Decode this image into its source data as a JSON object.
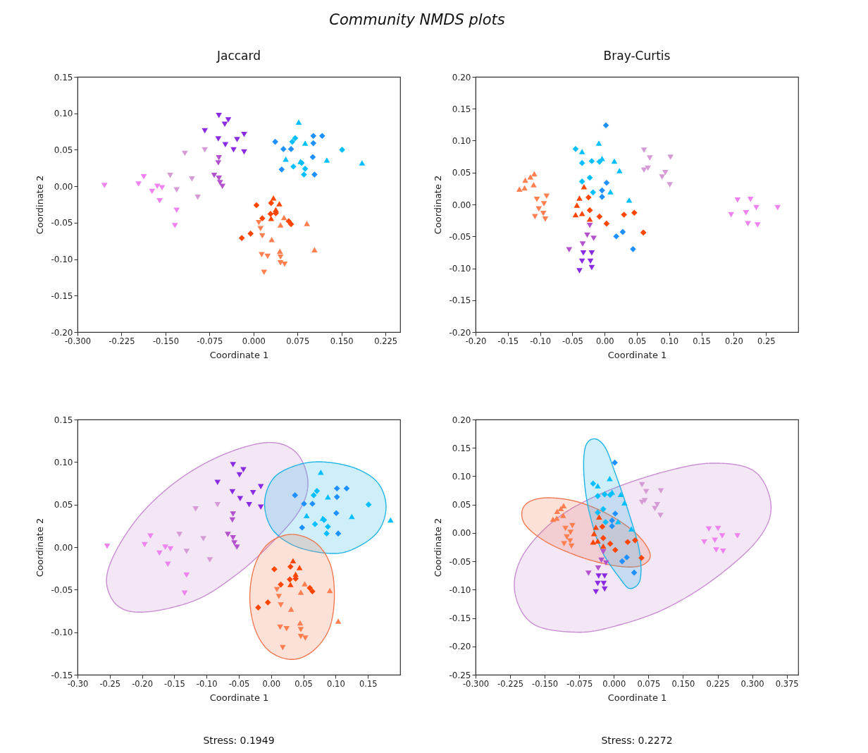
{
  "chart_data": [
    {
      "type": "scatter",
      "title": "Community NMDS plots",
      "subtitle": "Jaccard",
      "xlabel": "Coordinate 1",
      "ylabel": "Coordinate 2",
      "xlim": [
        -0.3,
        0.25
      ],
      "ylim": [
        -0.2,
        0.15
      ],
      "xticks": [
        {
          "value": -0.3,
          "label": "-0.300"
        },
        -0.225,
        {
          "value": -0.15,
          "label": "-0.150"
        },
        -0.075,
        {
          "value": 0,
          "label": "0.000"
        },
        0.075,
        {
          "value": 0.15,
          "label": "0.150"
        },
        0.225
      ],
      "yticks": [
        {
          "value": -0.2,
          "label": "-0.20"
        },
        -0.15,
        {
          "value": -0.1,
          "label": "-0.10"
        },
        -0.05,
        {
          "value": 0,
          "label": "0.00"
        },
        0.05,
        {
          "value": 0.1,
          "label": "0.10"
        },
        0.15
      ],
      "series": [
        {
          "color": "#ee82ee",
          "marker": "triangle-down",
          "x": [
            -0.254,
            -0.196,
            -0.187,
            -0.173,
            -0.164,
            -0.156,
            -0.16,
            -0.131,
            -0.134
          ],
          "values": [
            0.001,
            0.003,
            0.013,
            -0.007,
            0,
            -0.002,
            -0.02,
            -0.033,
            -0.054
          ]
        },
        {
          "color": "#d69bd6",
          "marker": "triangle-down",
          "x": [
            -0.117,
            -0.083,
            -0.142,
            -0.131,
            -0.105,
            -0.095
          ],
          "values": [
            0.045,
            0.05,
            0.015,
            -0.005,
            0.01,
            -0.015
          ]
        },
        {
          "color": "#b452cd",
          "marker": "triangle-down",
          "x": [
            -0.059,
            -0.06,
            -0.067,
            -0.059,
            -0.057,
            -0.053
          ],
          "values": [
            0.039,
            0.032,
            0.015,
            0.011,
            0.005,
            0.0
          ]
        },
        {
          "color": "#8a2be2",
          "marker": "triangle-down",
          "x": [
            -0.059,
            -0.043,
            -0.049,
            -0.083,
            -0.06,
            -0.048,
            -0.028,
            -0.016,
            -0.034,
            -0.016
          ],
          "values": [
            0.097,
            0.091,
            0.085,
            0.076,
            0.065,
            0.057,
            0.064,
            0.071,
            0.05,
            0.047
          ]
        },
        {
          "color": "#1e90ff",
          "marker": "diamond",
          "x": [
            0.037,
            0.051,
            0.064,
            0.048,
            0.102,
            0.117,
            0.102,
            0.101,
            0.104
          ],
          "values": [
            0.061,
            0.051,
            0.051,
            0.023,
            0.069,
            0.069,
            0.059,
            0.04,
            0.016
          ]
        },
        {
          "color": "#00bfff",
          "marker": "diamond",
          "x": [
            0.071,
            0.066,
            0.068,
            0.082,
            0.086,
            0.151,
            0.088
          ],
          "values": [
            0.066,
            0.061,
            0.027,
            0.032,
            0.016,
            0.05,
            0.024
          ]
        },
        {
          "color": "#00bfff",
          "marker": "triangle",
          "x": [
            0.077,
            0.088,
            0.055,
            0.125,
            0.185,
            0.08
          ],
          "values": [
            0.088,
            0.059,
            0.037,
            0.036,
            0.032,
            0.034
          ]
        },
        {
          "color": "#ff4500",
          "marker": "diamond",
          "x": [
            0.005,
            -0.02,
            -0.005,
            0.015,
            0.029,
            0.038,
            0.06,
            0.064,
            0.03
          ],
          "values": [
            -0.026,
            -0.071,
            -0.065,
            -0.044,
            -0.038,
            -0.037,
            -0.048,
            -0.052,
            -0.023
          ]
        },
        {
          "color": "#ff4500",
          "marker": "triangle",
          "x": [
            0.034,
            0.044,
            0.03,
            0.038
          ],
          "values": [
            -0.016,
            -0.024,
            -0.044,
            -0.032
          ]
        },
        {
          "color": "#ff7f50",
          "marker": "triangle",
          "x": [
            0.091,
            0.104,
            0.031,
            0.046,
            0.045,
            0.052
          ],
          "values": [
            -0.051,
            -0.087,
            -0.073,
            -0.053,
            -0.089,
            -0.043
          ]
        },
        {
          "color": "#ff7f50",
          "marker": "triangle-down",
          "x": [
            0.009,
            0.012,
            0.015,
            0.014,
            0.024,
            0.046,
            0.046,
            0.053,
            0.018
          ],
          "values": [
            -0.05,
            -0.058,
            -0.068,
            -0.094,
            -0.096,
            -0.097,
            -0.105,
            -0.107,
            -0.118
          ]
        }
      ]
    },
    {
      "type": "scatter",
      "title": "Bray-Curtis",
      "xlabel": "Coordinate 1",
      "ylabel": "Coordinate 2",
      "xlim": [
        -0.2,
        0.3
      ],
      "ylim": [
        -0.2,
        0.2
      ],
      "xticks": [
        {
          "value": -0.2,
          "label": "-0.20"
        },
        -0.15,
        {
          "value": -0.1,
          "label": "-0.10"
        },
        -0.05,
        {
          "value": 0,
          "label": "0.00"
        },
        0.05,
        {
          "value": 0.1,
          "label": "0.10"
        },
        0.15,
        {
          "value": 0.2,
          "label": "0.20"
        },
        0.25
      ],
      "yticks": [
        {
          "value": -0.2,
          "label": "-0.20"
        },
        -0.15,
        {
          "value": -0.1,
          "label": "-0.10"
        },
        -0.05,
        {
          "value": 0,
          "label": "0.00"
        },
        0.05,
        {
          "value": 0.1,
          "label": "0.10"
        },
        0.15,
        {
          "value": 0.2,
          "label": "0.20"
        }
      ],
      "series": [
        {
          "color": "#ee82ee",
          "marker": "triangle-down",
          "x": [
            0.206,
            0.226,
            0.235,
            0.196,
            0.219,
            0.222,
            0.237,
            0.268
          ],
          "values": [
            0.007,
            0.008,
            -0.005,
            -0.016,
            -0.013,
            -0.03,
            -0.032,
            -0.005
          ]
        },
        {
          "color": "#d69bd6",
          "marker": "triangle-down",
          "x": [
            0.061,
            0.07,
            0.061,
            0.067,
            0.102,
            0.094,
            0.089,
            0.101
          ],
          "values": [
            0.085,
            0.073,
            0.054,
            0.057,
            0.074,
            0.05,
            0.043,
            0.031
          ]
        },
        {
          "color": "#b452cd",
          "marker": "triangle-down",
          "x": [
            -0.023,
            -0.027,
            -0.017,
            -0.034,
            -0.055
          ],
          "values": [
            -0.033,
            -0.048,
            -0.053,
            -0.062,
            -0.071
          ]
        },
        {
          "color": "#8a2be2",
          "marker": "triangle-down",
          "x": [
            -0.033,
            -0.02,
            -0.035,
            -0.022,
            -0.039,
            -0.02
          ],
          "values": [
            -0.076,
            -0.076,
            -0.089,
            -0.089,
            -0.104,
            -0.099
          ]
        },
        {
          "color": "#1e90ff",
          "marker": "diamond",
          "x": [
            0.002,
            0.003,
            -0.004,
            -0.004,
            0.018,
            0.028,
            0.044
          ],
          "values": [
            0.124,
            0.034,
            0.022,
            0.012,
            -0.05,
            -0.043,
            -0.07
          ]
        },
        {
          "color": "#00bfff",
          "marker": "diamond",
          "x": [
            -0.045,
            -0.035,
            -0.02,
            -0.008,
            -0.023,
            -0.035,
            -0.018
          ],
          "values": [
            0.087,
            0.065,
            0.068,
            0.067,
            0.042,
            0.036,
            0.019
          ]
        },
        {
          "color": "#00bfff",
          "marker": "triangle",
          "x": [
            -0.009,
            -0.035,
            -0.004,
            0.015,
            0.023,
            0.009,
            0.038
          ],
          "values": [
            0.096,
            0.083,
            0.072,
            0.068,
            0.053,
            0.02,
            0.007
          ]
        },
        {
          "color": "#ff4500",
          "marker": "diamond",
          "x": [
            -0.025,
            -0.023,
            -0.008,
            0.003,
            0.03,
            0.046,
            0.06
          ],
          "values": [
            0.011,
            -0.009,
            -0.019,
            -0.03,
            -0.016,
            -0.013,
            -0.044
          ]
        },
        {
          "color": "#ff4500",
          "marker": "triangle",
          "x": [
            -0.032,
            -0.039,
            -0.043,
            -0.045,
            -0.035,
            -0.023
          ],
          "values": [
            0.028,
            0.01,
            -0.001,
            -0.016,
            -0.014,
            -0.023
          ]
        },
        {
          "color": "#ff7f50",
          "marker": "triangle",
          "x": [
            -0.132,
            -0.124,
            -0.123,
            -0.115,
            -0.109,
            -0.11
          ],
          "values": [
            0.024,
            0.026,
            0.038,
            0.043,
            0.048,
            0.031
          ]
        },
        {
          "color": "#ff7f50",
          "marker": "triangle-down",
          "x": [
            -0.105,
            -0.09,
            -0.094,
            -0.102,
            -0.108,
            -0.092,
            -0.095
          ],
          "values": [
            0.008,
            0.013,
            0.001,
            -0.007,
            -0.019,
            -0.023,
            -0.014
          ]
        }
      ]
    },
    {
      "type": "scatter",
      "xlabel": "Coordinate 1",
      "ylabel": "Coordinate 2",
      "xlim": [
        -0.3,
        0.2
      ],
      "ylim": [
        -0.15,
        0.15
      ],
      "annotations": [
        "Stress: 0.1949"
      ],
      "xticks": [
        {
          "value": -0.3,
          "label": "-0.30"
        },
        -0.25,
        {
          "value": -0.2,
          "label": "-0.20"
        },
        -0.15,
        {
          "value": -0.1,
          "label": "-0.10"
        },
        -0.05,
        {
          "value": 0,
          "label": "0.00"
        },
        0.05,
        {
          "value": 0.1,
          "label": "0.10"
        },
        0.15
      ],
      "yticks": [
        -0.15,
        {
          "value": -0.1,
          "label": "-0.10"
        },
        -0.05,
        {
          "value": 0,
          "label": "0.00"
        },
        0.05,
        {
          "value": 0.1,
          "label": "0.10"
        },
        0.15
      ],
      "series": [
        {
          "type": "area",
          "color": "#c88cd2",
          "x": [
            -0.255,
            -0.24,
            -0.198,
            -0.138,
            -0.07,
            -0.003,
            0.039,
            0.057,
            0.043,
            -0.003,
            -0.055,
            -0.116,
            -0.191,
            -0.236
          ],
          "values": [
            -0.041,
            -0.004,
            0.042,
            0.082,
            0.11,
            0.123,
            0.111,
            0.077,
            0.042,
            0.002,
            -0.033,
            -0.062,
            -0.076,
            -0.07
          ]
        },
        {
          "type": "area",
          "color": "#1eb4e6",
          "x": [
            -0.01,
            0.005,
            0.043,
            0.084,
            0.133,
            0.167,
            0.178,
            0.163,
            0.122,
            0.084,
            0.035,
            0.001
          ],
          "values": [
            0.053,
            0.082,
            0.097,
            0.1,
            0.092,
            0.074,
            0.045,
            0.016,
            -0.004,
            -0.007,
            0.002,
            0.022
          ]
        },
        {
          "type": "area",
          "color": "#f07850",
          "x": [
            -0.033,
            -0.025,
            -0.003,
            0.032,
            0.069,
            0.092,
            0.098,
            0.09,
            0.065,
            0.032,
            -0.003,
            -0.025
          ],
          "values": [
            -0.059,
            -0.021,
            0.005,
            0.015,
            0.005,
            -0.021,
            -0.059,
            -0.096,
            -0.122,
            -0.132,
            -0.122,
            -0.096
          ]
        },
        {
          "color": "#ee82ee",
          "marker": "triangle-down",
          "x": [
            -0.254,
            -0.196,
            -0.187,
            -0.173,
            -0.164,
            -0.156,
            -0.16,
            -0.131,
            -0.134
          ],
          "values": [
            0.001,
            0.003,
            0.013,
            -0.007,
            0,
            -0.002,
            -0.02,
            -0.033,
            -0.054
          ]
        },
        {
          "color": "#d69bd6",
          "marker": "triangle-down",
          "x": [
            -0.117,
            -0.083,
            -0.142,
            -0.131,
            -0.105,
            -0.095
          ],
          "values": [
            0.045,
            0.05,
            0.015,
            -0.005,
            0.01,
            -0.015
          ]
        },
        {
          "color": "#b452cd",
          "marker": "triangle-down",
          "x": [
            -0.059,
            -0.06,
            -0.067,
            -0.059,
            -0.057,
            -0.053
          ],
          "values": [
            0.039,
            0.032,
            0.015,
            0.011,
            0.005,
            0.0
          ]
        },
        {
          "color": "#8a2be2",
          "marker": "triangle-down",
          "x": [
            -0.059,
            -0.043,
            -0.049,
            -0.083,
            -0.06,
            -0.048,
            -0.028,
            -0.016,
            -0.034,
            -0.016
          ],
          "values": [
            0.097,
            0.091,
            0.085,
            0.076,
            0.065,
            0.057,
            0.064,
            0.071,
            0.05,
            0.047
          ]
        },
        {
          "color": "#1e90ff",
          "marker": "diamond",
          "x": [
            0.037,
            0.051,
            0.064,
            0.048,
            0.102,
            0.117,
            0.102,
            0.101,
            0.104
          ],
          "values": [
            0.061,
            0.051,
            0.051,
            0.023,
            0.069,
            0.069,
            0.059,
            0.04,
            0.016
          ]
        },
        {
          "color": "#00bfff",
          "marker": "diamond",
          "x": [
            0.071,
            0.066,
            0.068,
            0.082,
            0.086,
            0.151,
            0.088
          ],
          "values": [
            0.066,
            0.061,
            0.027,
            0.032,
            0.016,
            0.05,
            0.024
          ]
        },
        {
          "color": "#00bfff",
          "marker": "triangle",
          "x": [
            0.077,
            0.088,
            0.055,
            0.125,
            0.185,
            0.08
          ],
          "values": [
            0.088,
            0.059,
            0.037,
            0.036,
            0.032,
            0.034
          ]
        },
        {
          "color": "#ff4500",
          "marker": "diamond",
          "x": [
            0.005,
            -0.02,
            -0.005,
            0.015,
            0.029,
            0.038,
            0.06,
            0.064,
            0.03
          ],
          "values": [
            -0.026,
            -0.071,
            -0.065,
            -0.044,
            -0.038,
            -0.037,
            -0.048,
            -0.052,
            -0.023
          ]
        },
        {
          "color": "#ff4500",
          "marker": "triangle",
          "x": [
            0.034,
            0.044,
            0.03,
            0.038
          ],
          "values": [
            -0.016,
            -0.024,
            -0.044,
            -0.032
          ]
        },
        {
          "color": "#ff7f50",
          "marker": "triangle",
          "x": [
            0.091,
            0.104,
            0.031,
            0.046,
            0.045,
            0.052
          ],
          "values": [
            -0.051,
            -0.087,
            -0.073,
            -0.053,
            -0.089,
            -0.043
          ]
        },
        {
          "color": "#ff7f50",
          "marker": "triangle-down",
          "x": [
            0.009,
            0.012,
            0.015,
            0.014,
            0.024,
            0.046,
            0.046,
            0.053,
            0.018
          ],
          "values": [
            -0.05,
            -0.058,
            -0.068,
            -0.094,
            -0.096,
            -0.097,
            -0.105,
            -0.107,
            -0.118
          ]
        }
      ]
    },
    {
      "type": "scatter",
      "xlabel": "Coordinate 1",
      "ylabel": "Coordinate 2",
      "xlim": [
        -0.3,
        0.4
      ],
      "ylim": [
        -0.25,
        0.2
      ],
      "annotations": [
        "Stress: 0.2272"
      ],
      "xticks": [
        {
          "value": -0.3,
          "label": "-0.300"
        },
        -0.225,
        {
          "value": -0.15,
          "label": "-0.150"
        },
        -0.075,
        {
          "value": 0,
          "label": "0.000"
        },
        0.075,
        {
          "value": 0.15,
          "label": "0.150"
        },
        0.225,
        {
          "value": 0.3,
          "label": "0.300"
        },
        0.375
      ],
      "yticks": [
        -0.25,
        {
          "value": -0.2,
          "label": "-0.20"
        },
        -0.15,
        {
          "value": -0.1,
          "label": "-0.10"
        },
        -0.05,
        {
          "value": 0,
          "label": "0.00"
        },
        0.05,
        {
          "value": 0.1,
          "label": "0.10"
        },
        0.15,
        {
          "value": 0.2,
          "label": "0.20"
        }
      ],
      "series": [
        {
          "type": "area",
          "color": "#c88cd2",
          "x": [
            -0.215,
            -0.197,
            -0.123,
            -0.017,
            0.11,
            0.216,
            0.306,
            0.341,
            0.311,
            0.216,
            0.11,
            0.004,
            -0.08,
            -0.176
          ],
          "values": [
            -0.103,
            -0.039,
            0.026,
            0.073,
            0.108,
            0.123,
            0.108,
            0.047,
            -0.013,
            -0.082,
            -0.134,
            -0.164,
            -0.175,
            -0.16
          ]
        },
        {
          "type": "area",
          "color": "#f07850",
          "x": [
            -0.199,
            -0.181,
            -0.139,
            -0.075,
            -0.006,
            0.052,
            0.079,
            0.057,
            0.004,
            -0.07,
            -0.144,
            -0.191
          ],
          "values": [
            0.039,
            0.056,
            0.062,
            0.054,
            0.03,
            -0.004,
            -0.039,
            -0.058,
            -0.058,
            -0.043,
            -0.017,
            0.013
          ]
        },
        {
          "type": "area",
          "color": "#1eb4e6",
          "x": [
            -0.043,
            -0.019,
            0.004,
            0.031,
            0.055,
            0.057,
            0.036,
            0.015,
            -0.027,
            -0.054,
            -0.065,
            -0.062
          ],
          "values": [
            0.166,
            0.151,
            0.103,
            0.039,
            -0.03,
            -0.082,
            -0.098,
            -0.082,
            -0.03,
            0.039,
            0.103,
            0.151
          ]
        },
        {
          "color": "#ee82ee",
          "marker": "triangle-down",
          "x": [
            0.206,
            0.226,
            0.235,
            0.196,
            0.219,
            0.222,
            0.237,
            0.268
          ],
          "values": [
            0.007,
            0.008,
            -0.005,
            -0.016,
            -0.013,
            -0.03,
            -0.032,
            -0.005
          ]
        },
        {
          "color": "#d69bd6",
          "marker": "triangle-down",
          "x": [
            0.061,
            0.07,
            0.061,
            0.067,
            0.102,
            0.094,
            0.089,
            0.101
          ],
          "values": [
            0.085,
            0.073,
            0.054,
            0.057,
            0.074,
            0.05,
            0.043,
            0.031
          ]
        },
        {
          "color": "#b452cd",
          "marker": "triangle-down",
          "x": [
            -0.023,
            -0.027,
            -0.017,
            -0.034,
            -0.055
          ],
          "values": [
            -0.033,
            -0.048,
            -0.053,
            -0.062,
            -0.071
          ]
        },
        {
          "color": "#8a2be2",
          "marker": "triangle-down",
          "x": [
            -0.033,
            -0.02,
            -0.035,
            -0.022,
            -0.039,
            -0.02
          ],
          "values": [
            -0.076,
            -0.076,
            -0.089,
            -0.089,
            -0.104,
            -0.099
          ]
        },
        {
          "color": "#1e90ff",
          "marker": "diamond",
          "x": [
            0.002,
            0.003,
            -0.004,
            -0.004,
            0.018,
            0.028,
            0.044
          ],
          "values": [
            0.124,
            0.034,
            0.022,
            0.012,
            -0.05,
            -0.043,
            -0.07
          ]
        },
        {
          "color": "#00bfff",
          "marker": "diamond",
          "x": [
            -0.045,
            -0.035,
            -0.02,
            -0.008,
            -0.023,
            -0.035,
            -0.018
          ],
          "values": [
            0.087,
            0.065,
            0.068,
            0.067,
            0.042,
            0.036,
            0.019
          ]
        },
        {
          "color": "#00bfff",
          "marker": "triangle",
          "x": [
            -0.009,
            -0.035,
            -0.004,
            0.015,
            0.023,
            0.009,
            0.038
          ],
          "values": [
            0.096,
            0.083,
            0.072,
            0.068,
            0.053,
            0.02,
            0.007
          ]
        },
        {
          "color": "#ff4500",
          "marker": "diamond",
          "x": [
            -0.025,
            -0.023,
            -0.008,
            0.003,
            0.03,
            0.046,
            0.06
          ],
          "values": [
            0.011,
            -0.009,
            -0.019,
            -0.03,
            -0.016,
            -0.013,
            -0.044
          ]
        },
        {
          "color": "#ff4500",
          "marker": "triangle",
          "x": [
            -0.032,
            -0.039,
            -0.043,
            -0.045,
            -0.035,
            -0.023
          ],
          "values": [
            0.028,
            0.01,
            -0.001,
            -0.016,
            -0.014,
            -0.023
          ]
        },
        {
          "color": "#ff7f50",
          "marker": "triangle",
          "x": [
            -0.132,
            -0.124,
            -0.123,
            -0.115,
            -0.109,
            -0.11
          ],
          "values": [
            0.024,
            0.026,
            0.038,
            0.043,
            0.048,
            0.031
          ]
        },
        {
          "color": "#ff7f50",
          "marker": "triangle-down",
          "x": [
            -0.105,
            -0.09,
            -0.094,
            -0.102,
            -0.108,
            -0.092,
            -0.095
          ],
          "values": [
            0.008,
            0.013,
            0.001,
            -0.007,
            -0.019,
            -0.023,
            -0.014
          ]
        }
      ]
    }
  ]
}
